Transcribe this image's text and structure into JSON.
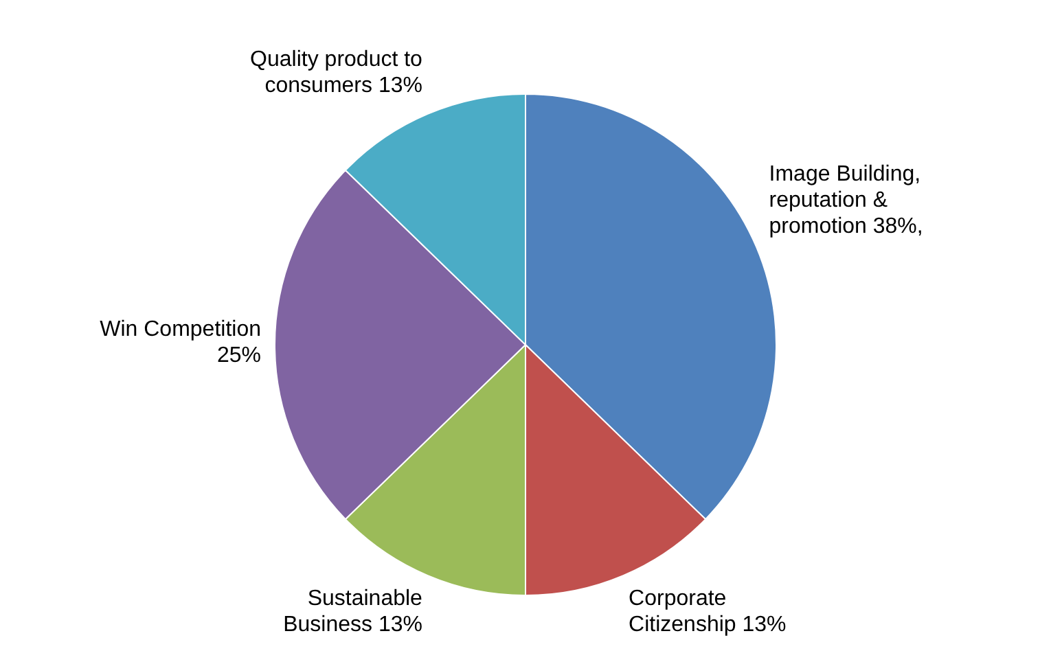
{
  "chart_data": {
    "type": "pie",
    "categories": [
      "Image Building, reputation & promotion",
      "Corporate Citizenship",
      "Sustainable Business",
      "Win Competition",
      "Quality product to consumers"
    ],
    "values": [
      38,
      13,
      13,
      25,
      13
    ],
    "value_labels": [
      "38%,",
      "13%",
      "13%",
      "25%",
      "13%"
    ],
    "colors": [
      "#4f81bd",
      "#c0504d",
      "#9bbb59",
      "#8064a2",
      "#4bacc6"
    ],
    "legend": false
  }
}
